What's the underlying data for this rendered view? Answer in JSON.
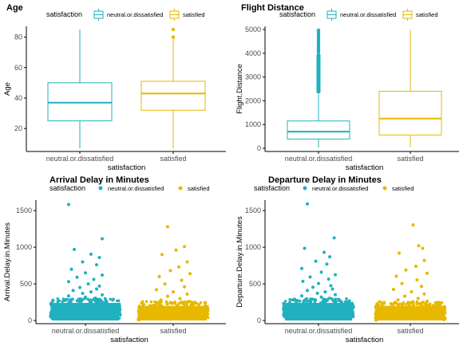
{
  "colors": {
    "neutral": "#1fb1bf",
    "satisfied": "#e6b800",
    "axis": "#000000",
    "text": "#000000",
    "tick_text": "#4d4d4d"
  },
  "chart_data": [
    {
      "type": "boxplot",
      "title": "Age",
      "xlabel": "satisfaction",
      "ylabel": "Age",
      "legend_title": "satisfaction",
      "legend_style": "box",
      "categories": [
        "neutral.or.dissatisfied",
        "satisfied"
      ],
      "ylim": [
        7,
        85
      ],
      "yticks": [
        20,
        40,
        60,
        80
      ],
      "series": [
        {
          "name": "neutral.or.dissatisfied",
          "min": 7,
          "q1": 25,
          "median": 37,
          "q3": 50,
          "max": 85,
          "outliers": []
        },
        {
          "name": "satisfied",
          "min": 7,
          "q1": 32,
          "median": 43,
          "q3": 51,
          "max": 79,
          "outliers": [
            80,
            85
          ]
        }
      ]
    },
    {
      "type": "boxplot",
      "title": "Flight Distance",
      "xlabel": "satisfaction",
      "ylabel": "Flight.Distance",
      "legend_title": "satisfaction",
      "legend_style": "box",
      "categories": [
        "neutral.or.dissatisfied",
        "satisfied"
      ],
      "ylim": [
        0,
        5000
      ],
      "yticks": [
        0,
        1000,
        2000,
        3000,
        4000,
        5000
      ],
      "series": [
        {
          "name": "neutral.or.dissatisfied",
          "min": 31,
          "q1": 390,
          "median": 700,
          "q3": 1150,
          "max": 2260,
          "outlier_band": [
            2300,
            4000
          ],
          "outliers": [
            4050,
            4120,
            4200,
            4290,
            4380,
            4460,
            4540,
            4630,
            4720,
            4810,
            4890,
            4970
          ]
        },
        {
          "name": "satisfied",
          "min": 50,
          "q1": 560,
          "median": 1250,
          "q3": 2400,
          "max": 4983,
          "outliers": []
        }
      ]
    },
    {
      "type": "scatter",
      "title": "Arrival Delay in Minutes",
      "xlabel": "satisfaction",
      "ylabel": "Arrival.Delay.in.Minutes",
      "legend_title": "satisfaction",
      "legend_style": "point",
      "categories": [
        "neutral.or.dissatisfied",
        "satisfied"
      ],
      "ylim": [
        0,
        1600
      ],
      "yticks": [
        0,
        500,
        1000,
        1500
      ],
      "series": [
        {
          "name": "neutral.or.dissatisfied",
          "dense_top": 240,
          "sparse": [
            [
              -0.3,
              1584
            ],
            [
              0.3,
              1115
            ],
            [
              -0.2,
              970
            ],
            [
              0.1,
              905
            ],
            [
              0.25,
              860
            ],
            [
              -0.05,
              800
            ],
            [
              0.2,
              760
            ],
            [
              -0.25,
              700
            ],
            [
              0.0,
              650
            ],
            [
              0.3,
              620
            ],
            [
              -0.15,
              590
            ],
            [
              0.15,
              560
            ],
            [
              -0.3,
              530
            ],
            [
              0.05,
              500
            ],
            [
              0.25,
              470
            ],
            [
              -0.1,
              450
            ],
            [
              0.2,
              430
            ],
            [
              -0.22,
              410
            ],
            [
              0.1,
              390
            ],
            [
              -0.05,
              370
            ],
            [
              0.3,
              350
            ],
            [
              -0.3,
              335
            ],
            [
              0.0,
              320
            ],
            [
              0.18,
              305
            ],
            [
              -0.12,
              290
            ],
            [
              0.27,
              280
            ],
            [
              -0.27,
              270
            ],
            [
              0.08,
              260
            ]
          ]
        },
        {
          "name": "satisfied",
          "dense_top": 200,
          "sparse": [
            [
              -0.1,
              1280
            ],
            [
              0.2,
              1010
            ],
            [
              0.05,
              960
            ],
            [
              -0.2,
              900
            ],
            [
              0.25,
              800
            ],
            [
              0.1,
              730
            ],
            [
              -0.05,
              680
            ],
            [
              0.3,
              640
            ],
            [
              -0.25,
              600
            ],
            [
              0.15,
              550
            ],
            [
              -0.15,
              500
            ],
            [
              0.2,
              460
            ],
            [
              -0.3,
              420
            ],
            [
              0.0,
              390
            ],
            [
              0.25,
              360
            ],
            [
              -0.1,
              330
            ],
            [
              0.12,
              300
            ],
            [
              -0.22,
              280
            ],
            [
              0.3,
              260
            ],
            [
              -0.05,
              245
            ],
            [
              0.18,
              230
            ]
          ]
        }
      ]
    },
    {
      "type": "scatter",
      "title": "Departure Delay in Minutes",
      "xlabel": "satisfaction",
      "ylabel": "Departure.Delay.in.Minutes",
      "legend_title": "satisfaction",
      "legend_style": "point",
      "categories": [
        "neutral.or.dissatisfied",
        "satisfied"
      ],
      "ylim": [
        0,
        1600
      ],
      "yticks": [
        0,
        500,
        1000,
        1500
      ],
      "series": [
        {
          "name": "neutral.or.dissatisfied",
          "dense_top": 240,
          "sparse": [
            [
              -0.2,
              1592
            ],
            [
              0.28,
              1128
            ],
            [
              -0.25,
              985
            ],
            [
              0.1,
              930
            ],
            [
              0.2,
              870
            ],
            [
              -0.05,
              810
            ],
            [
              0.15,
              770
            ],
            [
              -0.3,
              710
            ],
            [
              0.05,
              660
            ],
            [
              0.3,
              625
            ],
            [
              -0.15,
              595
            ],
            [
              0.18,
              565
            ],
            [
              -0.28,
              535
            ],
            [
              0.0,
              505
            ],
            [
              0.22,
              475
            ],
            [
              -0.1,
              455
            ],
            [
              0.25,
              430
            ],
            [
              -0.2,
              410
            ],
            [
              0.12,
              390
            ],
            [
              -0.02,
              372
            ],
            [
              0.3,
              352
            ],
            [
              -0.3,
              336
            ],
            [
              0.05,
              320
            ],
            [
              0.2,
              305
            ],
            [
              -0.14,
              292
            ],
            [
              0.26,
              280
            ],
            [
              -0.26,
              268
            ],
            [
              0.08,
              258
            ]
          ]
        },
        {
          "name": "satisfied",
          "dense_top": 200,
          "sparse": [
            [
              0.05,
              1305
            ],
            [
              0.15,
              1020
            ],
            [
              0.22,
              985
            ],
            [
              -0.2,
              920
            ],
            [
              0.25,
              820
            ],
            [
              0.1,
              740
            ],
            [
              -0.08,
              690
            ],
            [
              0.3,
              645
            ],
            [
              -0.25,
              605
            ],
            [
              0.12,
              555
            ],
            [
              -0.15,
              505
            ],
            [
              0.2,
              465
            ],
            [
              -0.3,
              425
            ],
            [
              0.02,
              392
            ],
            [
              0.25,
              362
            ],
            [
              -0.1,
              332
            ],
            [
              0.14,
              302
            ],
            [
              -0.22,
              282
            ],
            [
              0.3,
              262
            ],
            [
              -0.04,
              246
            ],
            [
              0.18,
              232
            ]
          ]
        }
      ]
    }
  ]
}
